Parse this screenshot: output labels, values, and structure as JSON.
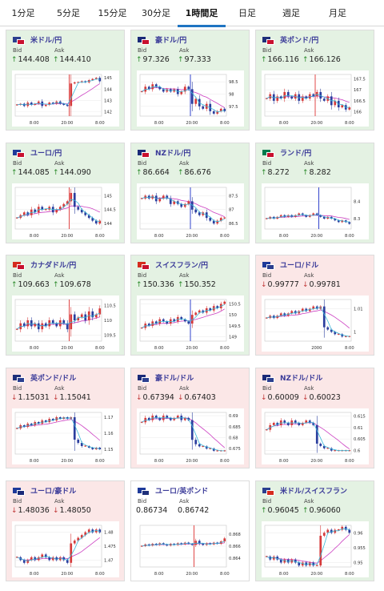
{
  "tabs": [
    {
      "label": "1分足",
      "active": false
    },
    {
      "label": "5分足",
      "active": false
    },
    {
      "label": "15分足",
      "active": false
    },
    {
      "label": "30分足",
      "active": false
    },
    {
      "label": "1時間足",
      "active": true
    },
    {
      "label": "日足",
      "active": false
    },
    {
      "label": "週足",
      "active": false
    },
    {
      "label": "月足",
      "active": false
    }
  ],
  "labels": {
    "bid": "Bid",
    "ask": "Ask"
  },
  "colors": {
    "up_bg": "#e4f2e3",
    "down_bg": "#fbe7e7",
    "flat_bg": "#ffffff",
    "title": "#3b3b99",
    "up_arrow": "#2a8a2a",
    "down_arrow": "#c23a3a",
    "candle_up": "#d63a3a",
    "candle_down": "#2b3e9e",
    "ma_short": "#39b8d8",
    "ma_long": "#cc3fc2",
    "active_tab": "#1f74c2"
  },
  "pairs": [
    {
      "name": "米ドル/円",
      "flags": [
        "#2b3f8f",
        "#c8102e"
      ],
      "trend": "up",
      "bid": "144.408",
      "ask": "144.410",
      "arrow": "↑",
      "chart_data": {
        "type": "candlestick",
        "x_ticks": [
          "8:00",
          "20:00",
          "8:00"
        ],
        "y_ticks": [
          "145",
          "144",
          "143",
          "142"
        ],
        "ylim": [
          141.6,
          145.3
        ],
        "marker_index": 15,
        "jump_index": 15,
        "closes": [
          142.6,
          142.7,
          142.5,
          142.8,
          142.6,
          142.7,
          142.9,
          142.5,
          142.6,
          142.8,
          142.7,
          142.9,
          142.7,
          142.6,
          142.5,
          144.5,
          144.6,
          144.6,
          144.7,
          144.6,
          144.8,
          144.9,
          145.0,
          144.7
        ]
      }
    },
    {
      "name": "豪ドル/円",
      "flags": [
        "#1a2a78",
        "#c8102e"
      ],
      "trend": "up",
      "bid": "97.326",
      "ask": "97.333",
      "arrow": "↑",
      "chart_data": {
        "type": "candlestick",
        "x_ticks": [
          "8:00",
          "20:00",
          "8:00"
        ],
        "y_ticks": [
          "98.5",
          "98",
          "97.5"
        ],
        "ylim": [
          97.1,
          98.8
        ],
        "marker_index": 14,
        "jump_index": 14,
        "closes": [
          98.1,
          98.3,
          98.2,
          98.4,
          98.3,
          98.2,
          98.1,
          98.2,
          98.1,
          98.2,
          98.0,
          98.1,
          98.3,
          98.2,
          97.6,
          97.8,
          97.5,
          97.4,
          97.6,
          97.3,
          97.2,
          97.3,
          97.4,
          97.3
        ]
      }
    },
    {
      "name": "英ポンド/円",
      "flags": [
        "#1e2f7a",
        "#c8102e"
      ],
      "trend": "up",
      "bid": "166.116",
      "ask": "166.126",
      "arrow": "↑",
      "chart_data": {
        "type": "candlestick",
        "x_ticks": [
          "8:00",
          "20:00",
          "8:00"
        ],
        "y_ticks": [
          "167.5",
          "167",
          "166.5",
          "166"
        ],
        "ylim": [
          165.8,
          167.7
        ],
        "marker_index": 14,
        "jump_index": null,
        "closes": [
          166.6,
          166.8,
          166.5,
          166.7,
          166.6,
          166.9,
          166.7,
          166.6,
          166.8,
          166.5,
          166.7,
          166.6,
          166.8,
          166.7,
          166.9,
          166.6,
          166.5,
          166.7,
          166.3,
          166.5,
          166.2,
          166.3,
          166.1,
          166.2
        ]
      }
    },
    {
      "name": "ユーロ/円",
      "flags": [
        "#1e3a9a",
        "#c8102e"
      ],
      "trend": "up",
      "bid": "144.085",
      "ask": "144.090",
      "arrow": "↑",
      "chart_data": {
        "type": "candlestick",
        "x_ticks": [
          "8:00",
          "20:00",
          "8:00"
        ],
        "y_ticks": [
          "145",
          "144.5",
          "144"
        ],
        "ylim": [
          143.8,
          145.3
        ],
        "marker_index": 15,
        "jump_index": 15,
        "closes": [
          144.2,
          144.3,
          144.4,
          144.3,
          144.5,
          144.4,
          144.6,
          144.5,
          144.5,
          144.6,
          144.4,
          144.5,
          144.6,
          144.7,
          144.8,
          145.1,
          144.6,
          144.5,
          144.4,
          144.3,
          144.2,
          144.1,
          144.0,
          144.1
        ]
      }
    },
    {
      "name": "NZドル/円",
      "flags": [
        "#1a2a78",
        "#c8102e"
      ],
      "trend": "up",
      "bid": "86.664",
      "ask": "86.676",
      "arrow": "↑",
      "chart_data": {
        "type": "candlestick",
        "x_ticks": [
          "8:00",
          "20:00",
          "8:00"
        ],
        "y_ticks": [
          "87.5",
          "87",
          "86.5"
        ],
        "ylim": [
          86.3,
          87.8
        ],
        "marker_index": 14,
        "jump_index": 14,
        "closes": [
          87.4,
          87.5,
          87.4,
          87.5,
          87.3,
          87.4,
          87.5,
          87.4,
          87.2,
          87.3,
          87.2,
          87.1,
          87.2,
          87.3,
          87.0,
          86.9,
          86.8,
          86.9,
          86.7,
          86.6,
          86.5,
          86.6,
          86.7,
          86.7
        ]
      }
    },
    {
      "name": "ランド/円",
      "flags": [
        "#007a4d",
        "#c8102e"
      ],
      "trend": "up",
      "bid": "8.272",
      "ask": "8.282",
      "arrow": "↑",
      "chart_data": {
        "type": "candlestick",
        "x_ticks": [
          "8:00",
          "20:00",
          "8:00"
        ],
        "y_ticks": [
          "8.4",
          "8.3"
        ],
        "ylim": [
          8.24,
          8.48
        ],
        "marker_index": 15,
        "jump_index": null,
        "closes": [
          8.3,
          8.31,
          8.3,
          8.31,
          8.32,
          8.31,
          8.32,
          8.31,
          8.32,
          8.33,
          8.32,
          8.31,
          8.32,
          8.33,
          8.32,
          8.31,
          8.3,
          8.31,
          8.3,
          8.29,
          8.28,
          8.29,
          8.28,
          8.27
        ]
      }
    },
    {
      "name": "カナダドル/円",
      "flags": [
        "#d52b1e",
        "#c8102e"
      ],
      "trend": "up",
      "bid": "109.663",
      "ask": "109.678",
      "arrow": "↑",
      "chart_data": {
        "type": "candlestick",
        "x_ticks": [
          "8:00",
          "20:00",
          "8:00"
        ],
        "y_ticks": [
          "110.5",
          "110",
          "109.5"
        ],
        "ylim": [
          109.3,
          110.7
        ],
        "marker_index": 15,
        "jump_index": 15,
        "closes": [
          109.7,
          109.9,
          109.8,
          110.0,
          109.8,
          109.9,
          109.7,
          109.9,
          109.8,
          110.0,
          109.9,
          109.8,
          110.0,
          109.9,
          109.7,
          110.2,
          110.0,
          110.1,
          110.2,
          110.0,
          110.3,
          110.1,
          110.2,
          110.4
        ]
      }
    },
    {
      "name": "スイスフラン/円",
      "flags": [
        "#d52b1e",
        "#c8102e"
      ],
      "trend": "up",
      "bid": "150.336",
      "ask": "150.352",
      "arrow": "↑",
      "chart_data": {
        "type": "candlestick",
        "x_ticks": [
          "8:00",
          "20:00",
          "8:00"
        ],
        "y_ticks": [
          "150.5",
          "150",
          "149.5",
          "149"
        ],
        "ylim": [
          148.8,
          150.7
        ],
        "marker_index": 14,
        "jump_index": 14,
        "closes": [
          149.4,
          149.6,
          149.5,
          149.7,
          149.6,
          149.8,
          149.7,
          149.6,
          149.8,
          149.7,
          149.9,
          149.8,
          149.7,
          149.6,
          150.0,
          150.1,
          150.2,
          150.1,
          150.3,
          150.2,
          150.4,
          150.3,
          150.5,
          150.6
        ]
      }
    },
    {
      "name": "ユーロ/ドル",
      "flags": [
        "#1e3a9a",
        "#2b3f8f"
      ],
      "trend": "down",
      "bid": "0.99777",
      "ask": "0.99781",
      "arrow": "↓",
      "chart_data": {
        "type": "candlestick",
        "x_ticks": [
          "2000",
          "8:00"
        ],
        "y_ticks": [
          "1.01",
          "1"
        ],
        "ylim": [
          0.996,
          1.014
        ],
        "marker_index": null,
        "jump_index": 16,
        "closes": [
          1.006,
          1.007,
          1.006,
          1.007,
          1.008,
          1.007,
          1.008,
          1.009,
          1.008,
          1.009,
          1.01,
          1.009,
          1.01,
          1.011,
          1.01,
          1.011,
          1.002,
          1.001,
          1.0,
          0.999,
          0.999,
          0.998,
          0.998,
          0.998
        ]
      }
    },
    {
      "name": "英ポンド/ドル",
      "flags": [
        "#1e2f7a",
        "#2b3f8f"
      ],
      "trend": "down",
      "bid": "1.15031",
      "ask": "1.15041",
      "arrow": "↓",
      "chart_data": {
        "type": "candlestick",
        "x_ticks": [
          "8:00",
          "20:00",
          "8:00"
        ],
        "y_ticks": [
          "1.17",
          "1.16",
          "1.15"
        ],
        "ylim": [
          1.147,
          1.173
        ],
        "marker_index": null,
        "jump_index": 16,
        "closes": [
          1.163,
          1.165,
          1.164,
          1.166,
          1.165,
          1.167,
          1.166,
          1.168,
          1.167,
          1.169,
          1.168,
          1.17,
          1.169,
          1.17,
          1.169,
          1.17,
          1.156,
          1.154,
          1.152,
          1.152,
          1.151,
          1.15,
          1.151,
          1.15
        ]
      }
    },
    {
      "name": "豪ドル/ドル",
      "flags": [
        "#1a2a78",
        "#2b3f8f"
      ],
      "trend": "down",
      "bid": "0.67394",
      "ask": "0.67403",
      "arrow": "↓",
      "chart_data": {
        "type": "candlestick",
        "x_ticks": [
          "8:00",
          "20:00",
          "8:00"
        ],
        "y_ticks": [
          "0.69",
          "0.685",
          "0.68",
          "0.675"
        ],
        "ylim": [
          0.6725,
          0.6915
        ],
        "marker_index": null,
        "jump_index": 14,
        "closes": [
          0.687,
          0.689,
          0.688,
          0.69,
          0.689,
          0.688,
          0.69,
          0.689,
          0.688,
          0.689,
          0.69,
          0.688,
          0.689,
          0.688,
          0.679,
          0.677,
          0.676,
          0.676,
          0.675,
          0.675,
          0.674,
          0.674,
          0.674,
          0.674
        ]
      }
    },
    {
      "name": "NZドル/ドル",
      "flags": [
        "#1a2a78",
        "#2b3f8f"
      ],
      "trend": "down",
      "bid": "0.60009",
      "ask": "0.60023",
      "arrow": "↓",
      "chart_data": {
        "type": "candlestick",
        "x_ticks": [
          "8:00",
          "20:00",
          "8:00"
        ],
        "y_ticks": [
          "0.615",
          "0.61",
          "0.605",
          "0.6"
        ],
        "ylim": [
          0.5985,
          0.6165
        ],
        "marker_index": null,
        "jump_index": 14,
        "closes": [
          0.609,
          0.611,
          0.612,
          0.611,
          0.613,
          0.612,
          0.611,
          0.613,
          0.612,
          0.611,
          0.612,
          0.613,
          0.612,
          0.611,
          0.603,
          0.602,
          0.601,
          0.601,
          0.6,
          0.6,
          0.6,
          0.6,
          0.6,
          0.6
        ]
      }
    },
    {
      "name": "ユーロ/豪ドル",
      "flags": [
        "#1e3a9a",
        "#1a2a78"
      ],
      "trend": "down",
      "bid": "1.48036",
      "ask": "1.48050",
      "arrow": "↓",
      "chart_data": {
        "type": "candlestick",
        "x_ticks": [
          "8:00",
          "20:00",
          "8:00"
        ],
        "y_ticks": [
          "1.48",
          "1.475",
          "1.47"
        ],
        "ylim": [
          1.4675,
          1.4825
        ],
        "marker_index": null,
        "jump_index": 15,
        "closes": [
          1.471,
          1.47,
          1.469,
          1.47,
          1.471,
          1.47,
          1.471,
          1.472,
          1.471,
          1.47,
          1.471,
          1.47,
          1.471,
          1.47,
          1.469,
          1.476,
          1.477,
          1.478,
          1.479,
          1.48,
          1.481,
          1.48,
          1.481,
          1.48
        ]
      }
    },
    {
      "name": "ユーロ/英ポンド",
      "flags": [
        "#1e3a9a",
        "#1e2f7a"
      ],
      "trend": "flat",
      "bid": "0.86734",
      "ask": "0.86742",
      "arrow": "",
      "chart_data": {
        "type": "candlestick",
        "x_ticks": [
          "8:00",
          "20:00",
          "8:00"
        ],
        "y_ticks": [
          "0.868",
          "0.866",
          "0.864"
        ],
        "ylim": [
          0.8625,
          0.8695
        ],
        "marker_index": 15,
        "jump_index": null,
        "closes": [
          0.866,
          0.8663,
          0.8661,
          0.8664,
          0.8662,
          0.8665,
          0.8663,
          0.8661,
          0.8664,
          0.8662,
          0.8665,
          0.8663,
          0.8666,
          0.8664,
          0.8662,
          0.8669,
          0.8664,
          0.8662,
          0.8665,
          0.8663,
          0.8666,
          0.8664,
          0.8668,
          0.8673
        ]
      }
    },
    {
      "name": "米ドル/スイスフラン",
      "flags": [
        "#2b3f8f",
        "#d52b1e"
      ],
      "trend": "up",
      "bid": "0.96045",
      "ask": "0.96060",
      "arrow": "↑",
      "chart_data": {
        "type": "candlestick",
        "x_ticks": [
          "8:00",
          "20:00",
          "8:00"
        ],
        "y_ticks": [
          "0.96",
          "0.955",
          "0.95"
        ],
        "ylim": [
          0.9485,
          0.9625
        ],
        "marker_index": null,
        "jump_index": 15,
        "closes": [
          0.952,
          0.951,
          0.952,
          0.951,
          0.95,
          0.951,
          0.95,
          0.951,
          0.95,
          0.949,
          0.95,
          0.949,
          0.95,
          0.949,
          0.949,
          0.959,
          0.96,
          0.961,
          0.96,
          0.961,
          0.961,
          0.962,
          0.961,
          0.96
        ]
      }
    }
  ]
}
